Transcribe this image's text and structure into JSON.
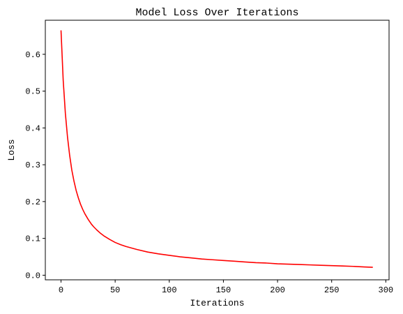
{
  "chart_data": {
    "type": "line",
    "title": "Model Loss Over Iterations",
    "xlabel": "Iterations",
    "ylabel": "Loss",
    "xlim": [
      -14.5,
      303
    ],
    "ylim": [
      -0.0125,
      0.6925
    ],
    "xticks": [
      0,
      50,
      100,
      150,
      200,
      250,
      300
    ],
    "yticks": [
      0.0,
      0.1,
      0.2,
      0.3,
      0.4,
      0.5,
      0.6
    ],
    "xtick_labels": [
      "0",
      "50",
      "100",
      "150",
      "200",
      "250",
      "300"
    ],
    "ytick_labels": [
      "0.0",
      "0.1",
      "0.2",
      "0.3",
      "0.4",
      "0.5",
      "0.6"
    ],
    "grid": false,
    "legend": "none",
    "series": [
      {
        "color": "#ff0000",
        "x": [
          0,
          2,
          4,
          6,
          8,
          10,
          12,
          14,
          16,
          18,
          20,
          22,
          25,
          28,
          30,
          33,
          36,
          40,
          45,
          50,
          55,
          60,
          70,
          80,
          90,
          100,
          110,
          120,
          130,
          140,
          150,
          160,
          170,
          180,
          190,
          200,
          210,
          220,
          230,
          240,
          250,
          260,
          270,
          280,
          288
        ],
        "y": [
          0.665,
          0.53,
          0.44,
          0.375,
          0.325,
          0.285,
          0.255,
          0.23,
          0.21,
          0.193,
          0.179,
          0.167,
          0.152,
          0.139,
          0.132,
          0.123,
          0.115,
          0.106,
          0.097,
          0.089,
          0.083,
          0.078,
          0.07,
          0.063,
          0.058,
          0.054,
          0.05,
          0.047,
          0.044,
          0.042,
          0.04,
          0.038,
          0.036,
          0.034,
          0.033,
          0.031,
          0.03,
          0.029,
          0.028,
          0.027,
          0.026,
          0.025,
          0.024,
          0.0225,
          0.0215
        ]
      }
    ]
  }
}
